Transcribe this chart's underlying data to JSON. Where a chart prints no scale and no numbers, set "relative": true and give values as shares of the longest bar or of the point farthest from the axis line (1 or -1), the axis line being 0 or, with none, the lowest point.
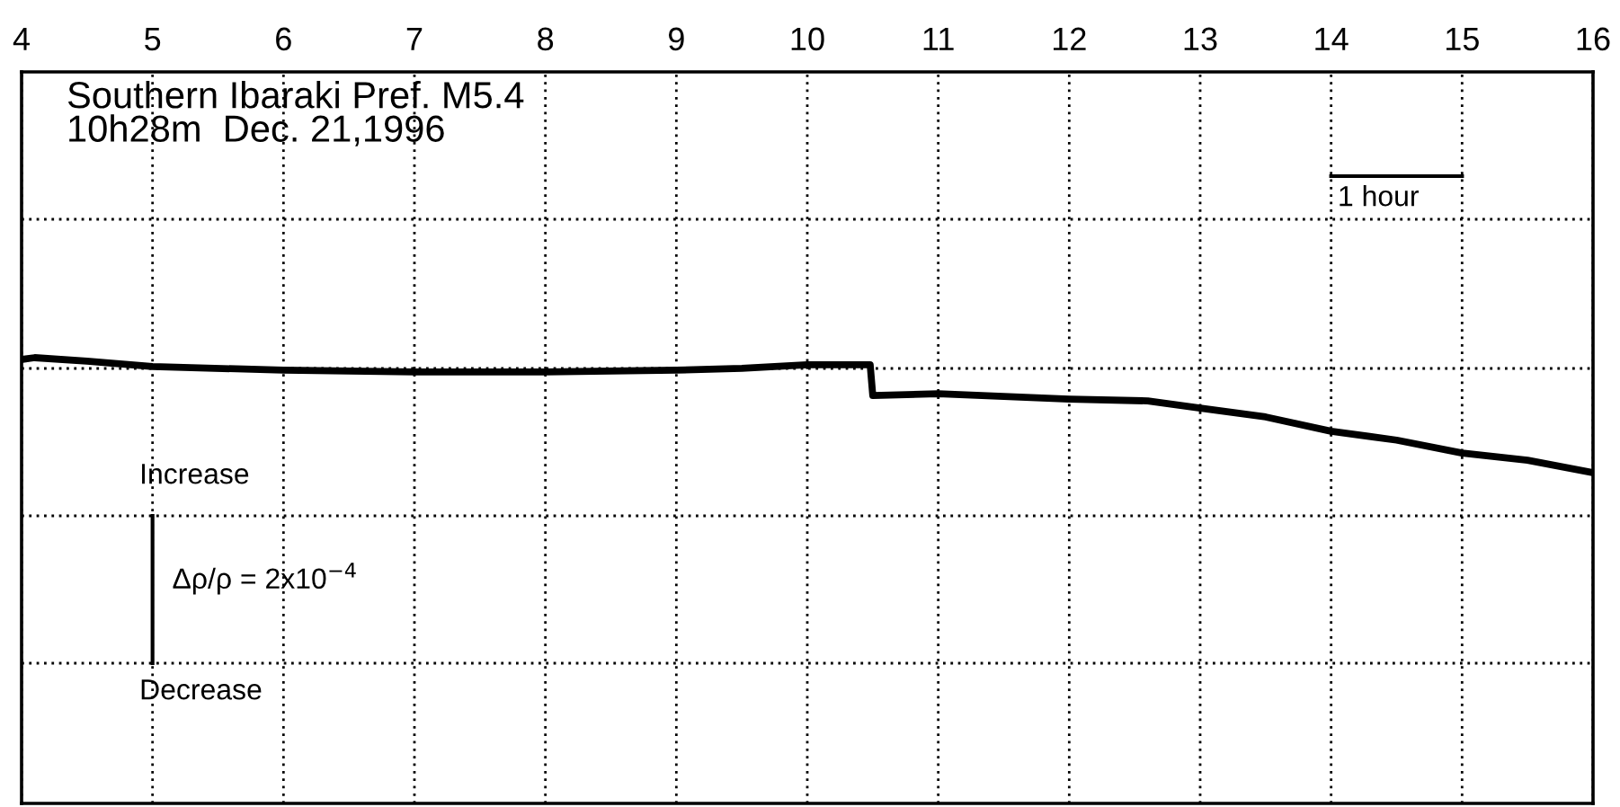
{
  "chart_data": {
    "type": "line",
    "relative": true,
    "xlim": [
      4,
      16
    ],
    "xticks": [
      4,
      5,
      6,
      7,
      8,
      9,
      10,
      11,
      12,
      13,
      14,
      15,
      16
    ],
    "grid": true,
    "marker": "none",
    "line_style": "solid",
    "series": [
      {
        "color": "#000000",
        "x": [
          4,
          4.1,
          4.5,
          5,
          6,
          7,
          8,
          9,
          9.5,
          10,
          10.48,
          10.5,
          11,
          12,
          12.6,
          13,
          13.5,
          14,
          14.5,
          15,
          15.5,
          16
        ],
        "values": [
          0.996,
          1,
          0.992,
          0.98,
          0.972,
          0.968,
          0.968,
          0.972,
          0.976,
          0.984,
          0.984,
          0.915,
          0.919,
          0.907,
          0.903,
          0.887,
          0.867,
          0.835,
          0.815,
          0.786,
          0.77,
          0.742
        ]
      }
    ],
    "annotations": [
      "Southern Ibaraki Pref. M5.4\n10h28m  Dec. 21,1996",
      "1 hour",
      "Increase",
      "Δρ/ρ = 2x10$^{−4}$",
      "Decrease"
    ]
  }
}
